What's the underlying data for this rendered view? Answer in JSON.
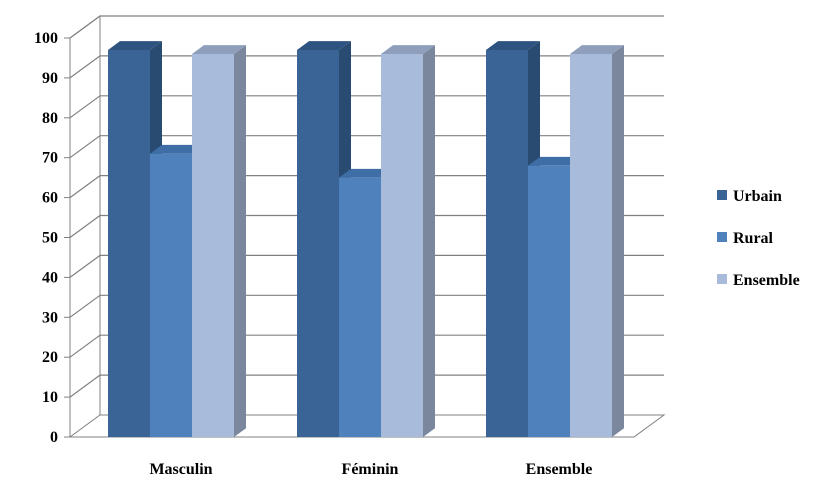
{
  "chart_data": {
    "type": "bar",
    "categories": [
      "Masculin",
      "Féminin",
      "Ensemble"
    ],
    "series": [
      {
        "name": "Urbain",
        "values": [
          97,
          97,
          97
        ],
        "color": "#3B6496",
        "side_color": "#294B72",
        "top_color": "#2F5380"
      },
      {
        "name": "Rural",
        "values": [
          71,
          65,
          68
        ],
        "color": "#4F81BD",
        "side_color": "#3A6493",
        "top_color": "#3F6EA6"
      },
      {
        "name": "Ensemble",
        "values": [
          96,
          96,
          96
        ],
        "color": "#A9BBDA",
        "side_color": "#7A879D",
        "top_color": "#8F9FBB"
      }
    ],
    "ylim": [
      0,
      100
    ],
    "yticks": [
      0,
      10,
      20,
      30,
      40,
      50,
      60,
      70,
      80,
      90,
      100
    ],
    "grid": true,
    "legend": "right",
    "title": "",
    "xlabel": "",
    "ylabel": ""
  }
}
